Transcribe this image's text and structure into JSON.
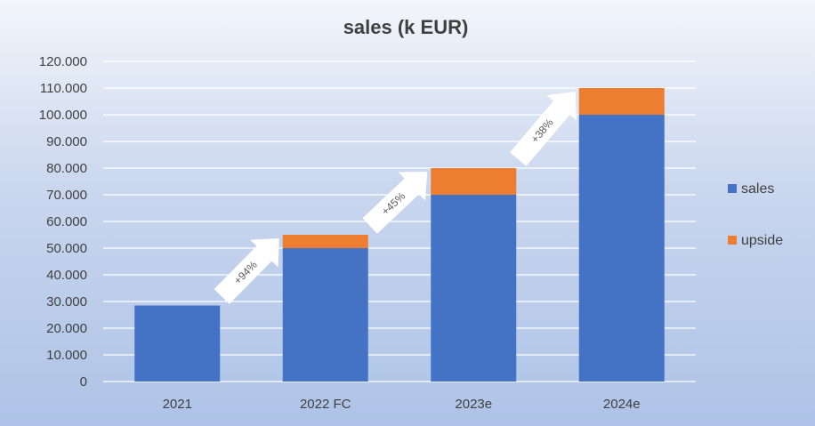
{
  "chart_data": {
    "type": "bar",
    "stacked": true,
    "title": "sales (k EUR)",
    "categories": [
      "2021",
      "2022 FC",
      "2023e",
      "2024e"
    ],
    "series": [
      {
        "name": "sales",
        "values": [
          28500,
          50000,
          70000,
          100000
        ],
        "color": "#4472c4"
      },
      {
        "name": "upside",
        "values": [
          0,
          5000,
          10000,
          10000
        ],
        "color": "#ed7d31"
      }
    ],
    "ylim": [
      0,
      120000
    ],
    "y_ticks": [
      0,
      10000,
      20000,
      30000,
      40000,
      50000,
      60000,
      70000,
      80000,
      90000,
      100000,
      110000,
      120000
    ],
    "y_tick_labels": [
      "0",
      "10.000",
      "20.000",
      "30.000",
      "40.000",
      "50.000",
      "60.000",
      "70.000",
      "80.000",
      "90.000",
      "100.000",
      "110.000",
      "120.000"
    ],
    "grid": true,
    "legend_position": "right",
    "growth_arrows": [
      {
        "from": "2021",
        "to": "2022 FC",
        "label": "+94%"
      },
      {
        "from": "2022 FC",
        "to": "2023e",
        "label": "+45%"
      },
      {
        "from": "2023e",
        "to": "2024e",
        "label": "+38%"
      }
    ]
  }
}
